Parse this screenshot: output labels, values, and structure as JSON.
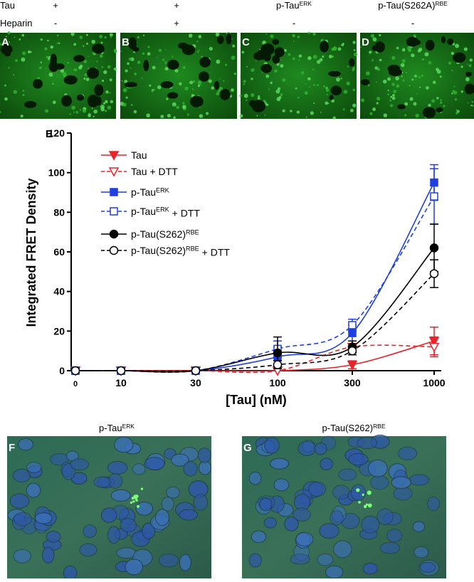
{
  "header": {
    "rows": [
      "Tau",
      "Heparin"
    ],
    "columns": [
      {
        "letter": "A",
        "tau": "+",
        "heparin": "-"
      },
      {
        "letter": "B",
        "tau": "+",
        "heparin": "+"
      },
      {
        "letter": "C",
        "tau": "p-Tau",
        "tau_sup": "ERK",
        "heparin": "-"
      },
      {
        "letter": "D",
        "tau": "p-Tau(S262A)",
        "tau_sup": "RBE",
        "heparin": "-"
      }
    ]
  },
  "chart_data": {
    "type": "line",
    "letter": "E",
    "xlabel": "[Tau] (nM)",
    "ylabel": "Integrated FRET Density",
    "x": [
      0,
      10,
      30,
      100,
      300,
      1000
    ],
    "xscale": "log",
    "xticks": [
      0,
      10,
      30,
      100,
      300,
      1000
    ],
    "ylim": [
      0,
      120
    ],
    "yticks": [
      0,
      20,
      40,
      60,
      80,
      100,
      120
    ],
    "series": [
      {
        "name": "Tau",
        "color": "#e8242a",
        "marker": "triangle-down",
        "filled": true,
        "line_style": "solid",
        "values": [
          0,
          0,
          0,
          0,
          3,
          15
        ],
        "errors": [
          0,
          0,
          0,
          0,
          2,
          7
        ]
      },
      {
        "name": "Tau",
        "suffix": " + DTT",
        "color": "#e8242a",
        "marker": "triangle-down",
        "filled": false,
        "line_style": "dashed",
        "values": [
          0,
          0,
          0,
          0,
          12,
          12
        ],
        "errors": [
          0,
          0,
          0,
          0,
          3,
          5
        ]
      },
      {
        "name": "p-Tau",
        "sup": "ERK",
        "color": "#1f3fe0",
        "marker": "square",
        "filled": true,
        "line_style": "solid",
        "values": [
          0,
          0,
          0,
          7,
          19,
          95
        ],
        "errors": [
          0,
          0,
          0,
          5,
          4,
          9
        ]
      },
      {
        "name": "p-Tau",
        "sup": "ERK",
        "suffix": " + DTT",
        "color": "#1f3fe0",
        "marker": "square",
        "filled": false,
        "line_style": "dashed",
        "values": [
          0,
          0,
          0,
          11,
          23,
          88
        ],
        "errors": [
          0,
          0,
          0,
          4,
          3,
          14
        ]
      },
      {
        "name": "p-Tau(S262)",
        "sup": "RBE",
        "color": "#000000",
        "marker": "circle",
        "filled": true,
        "line_style": "solid",
        "values": [
          0,
          0,
          0,
          9,
          12,
          62
        ],
        "errors": [
          0,
          0,
          0,
          8,
          3,
          12
        ]
      },
      {
        "name": "p-Tau(S262)",
        "sup": "RBE",
        "suffix": " + DTT",
        "color": "#000000",
        "marker": "circle",
        "filled": false,
        "line_style": "dashed",
        "values": [
          0,
          0,
          0,
          3,
          10,
          49
        ],
        "errors": [
          0,
          0,
          0,
          2,
          2,
          7
        ]
      }
    ]
  },
  "bottom": [
    {
      "letter": "F",
      "title": "p-Tau",
      "title_sup": "ERK"
    },
    {
      "letter": "G",
      "title": "p-Tau(S262)",
      "title_sup": "RBE"
    }
  ]
}
